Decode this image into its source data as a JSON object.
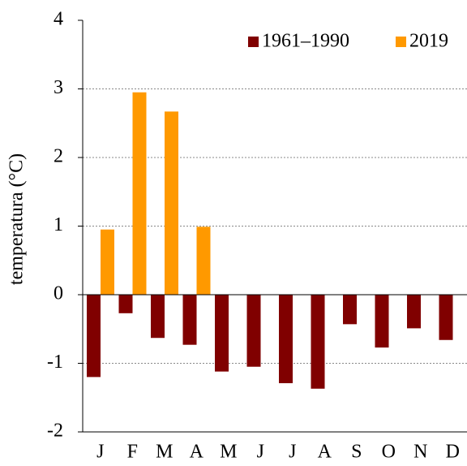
{
  "chart_data": {
    "type": "bar",
    "y_label": "temperatura (°C)",
    "categories": [
      "J",
      "F",
      "M",
      "A",
      "M",
      "J",
      "J",
      "A",
      "S",
      "O",
      "N",
      "D"
    ],
    "series": [
      {
        "name": "1961–1990",
        "color": "#800000",
        "values": [
          -1.2,
          -0.27,
          -0.63,
          -0.73,
          -1.12,
          -1.05,
          -1.29,
          -1.37,
          -0.43,
          -0.77,
          -0.49,
          -0.66
        ]
      },
      {
        "name": "2019",
        "color": "#ff9900",
        "values": [
          0.95,
          2.95,
          2.67,
          0.99,
          null,
          null,
          null,
          null,
          null,
          null,
          null,
          null
        ]
      }
    ],
    "ylim": [
      -2,
      4
    ],
    "yticks": [
      -2,
      -1,
      0,
      1,
      2,
      3,
      4
    ],
    "grid": true,
    "legend": "top-right"
  }
}
